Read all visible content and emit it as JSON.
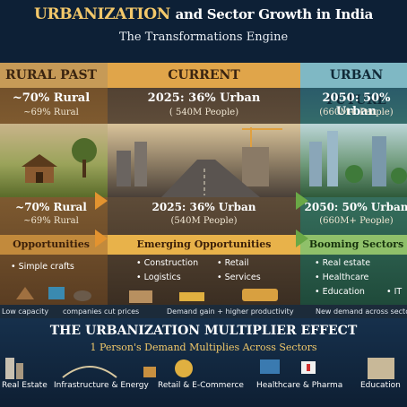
{
  "header": {
    "title_lead": "URBANIZATION",
    "title_rest": "and Sector Growth in India",
    "subtitle": "The Transformations Engine"
  },
  "panels": [
    {
      "heading": "RURAL PAST",
      "stat_main": "~70% Rural",
      "stat_sub": "~69% Rural",
      "stat_main2": "~70% Rural",
      "stat_sub2": "~69% Rural",
      "opp_heading": "Opportunities",
      "opps": [
        "Simple crafts"
      ]
    },
    {
      "heading": "CURRENT",
      "stat_main": "2025: 36% Urban",
      "stat_sub": "( 540M People)",
      "stat_main2": "2025: 36% Urban",
      "stat_sub2": "(540M People)",
      "opp_heading": "Emerging Opportunities",
      "opps": [
        "Construction",
        "Retail",
        "Logistics",
        "Services"
      ]
    },
    {
      "heading": "URBAN FUTURE",
      "stat_main": "2050: 50% Urban",
      "stat_sub": "(660M+ People)",
      "stat_main2": "2050: 50% Urban",
      "stat_sub2": "(660M+ People)",
      "opp_heading": "Booming Sectors",
      "opps": [
        "Real estate",
        "Healthcare",
        "Education",
        "IT"
      ]
    }
  ],
  "flow_strip": {
    "left": "Low capacity",
    "left2": "companies cut prices",
    "middle": "Demand gain + higher productivity",
    "right": "New demand across sectors"
  },
  "multiplier": {
    "title": "THE URBANIZATION MULTIPLIER EFFECT",
    "subtitle": "1 Person's Demand Multiplies Across Sectors",
    "sectors": [
      "Real Estate",
      "Infrastructure & Energy",
      "Retail & E-Commerce",
      "Healthcare & Pharma",
      "Education"
    ]
  },
  "colors": {
    "gold": "#f3c86a",
    "arrow_orange": "#e3932f",
    "navy": "#0d2036"
  }
}
